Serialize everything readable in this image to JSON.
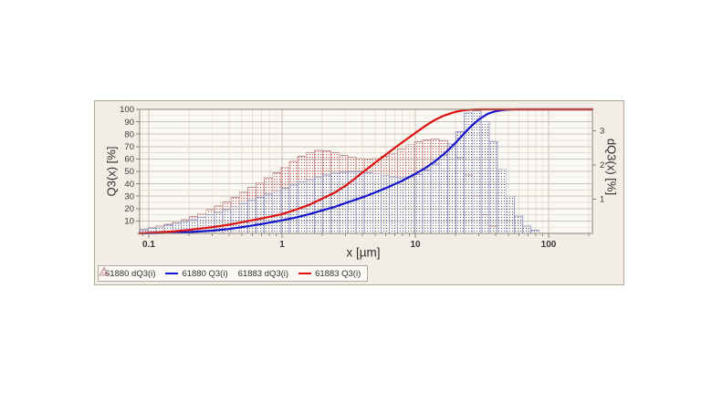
{
  "page": {
    "background": "#ffffff"
  },
  "colors": {
    "red_series": "#dd1111",
    "blue_series": "#1414cc",
    "red_bar_stroke": "#c49494",
    "red_bar_dot": "#cc5050",
    "blue_bar_stroke": "#9a9ec8",
    "blue_bar_dot": "#5e62aa",
    "panel_bg": "#f2eee5",
    "panel_border": "#b3a795",
    "plot_bg": "#fbf9f4",
    "grid_major": "#c8c3b8",
    "grid_minor": "#e4e0d6",
    "axis": "#8a8274",
    "text": "#3a3a3a",
    "legend_bg": "#fbfaf7",
    "legend_border": "#b2aea4"
  },
  "chart_data": {
    "type": "histogram+cumulative particle size distribution (log x)",
    "title": "",
    "x_axis": {
      "label": "x [µm]",
      "scale": "log",
      "range": [
        0.085,
        213
      ],
      "ticks": [
        0.1,
        1,
        10,
        100
      ]
    },
    "y_left": {
      "label": "Q3(x) [%]",
      "range": [
        0,
        100
      ],
      "ticks": [
        10,
        20,
        30,
        40,
        50,
        60,
        70,
        80,
        90,
        100
      ],
      "grid_major_step": 10,
      "grid_minor_step": 5
    },
    "y_right": {
      "label": "dQ3(x) [%]",
      "range": [
        0,
        3.63
      ],
      "ticks": [
        1,
        2,
        3
      ]
    },
    "legend_position": "bottom-left",
    "series": [
      {
        "name": "61883 dQ3(i)",
        "sample": "61883",
        "type": "histogram",
        "value_units": "left-axis % equivalent (right axis = value*3.63/100)",
        "x_start": 0.085,
        "ratio": 1.1548,
        "stroke_key": "red_bar_stroke",
        "dot_key": "red_bar_dot",
        "values": [
          3.5,
          4.5,
          6,
          7.5,
          9,
          11,
          13.5,
          16,
          19,
          22,
          25.5,
          29,
          33,
          37,
          41,
          45,
          49,
          53.5,
          58,
          62,
          65,
          67,
          66.5,
          65,
          63,
          61.5,
          60.5,
          60,
          60.5,
          62,
          64.5,
          68,
          71.5,
          74,
          75.5,
          76,
          74.5,
          70,
          61,
          47,
          30,
          15,
          6
        ]
      },
      {
        "name": "61880 dQ3(i)",
        "sample": "61880",
        "type": "histogram",
        "value_units": "left-axis % equivalent (right axis = value*3.63/100)",
        "x_start": 0.085,
        "ratio": 1.1548,
        "stroke_key": "blue_bar_stroke",
        "dot_key": "blue_bar_dot",
        "values": [
          3,
          4,
          5,
          6.5,
          8,
          9.5,
          11,
          13,
          15,
          17,
          19,
          21.5,
          24,
          26.5,
          29,
          31.5,
          34,
          36.5,
          39,
          41.5,
          43.5,
          45.5,
          47,
          48.5,
          49.2,
          49.5,
          49.5,
          49,
          48,
          46.5,
          45.5,
          45,
          45.5,
          47.5,
          51,
          56,
          63,
          72,
          82,
          97,
          99,
          90,
          74,
          52,
          30,
          14,
          6,
          2.5
        ]
      },
      {
        "name": "61880 Q3(i)",
        "sample": "61880",
        "type": "line",
        "color_key": "blue_series",
        "points": [
          [
            0.085,
            0
          ],
          [
            0.12,
            0.2
          ],
          [
            0.2,
            1
          ],
          [
            0.3,
            2.2
          ],
          [
            0.4,
            3.5
          ],
          [
            0.5,
            5
          ],
          [
            0.7,
            7.5
          ],
          [
            1,
            10.5
          ],
          [
            1.3,
            13
          ],
          [
            1.6,
            15.5
          ],
          [
            2,
            18.5
          ],
          [
            2.5,
            21.5
          ],
          [
            3,
            24.5
          ],
          [
            4,
            29
          ],
          [
            5,
            33
          ],
          [
            6,
            36.5
          ],
          [
            8,
            42.5
          ],
          [
            10,
            48
          ],
          [
            12,
            53
          ],
          [
            14,
            58
          ],
          [
            16,
            63
          ],
          [
            18,
            68
          ],
          [
            20,
            73
          ],
          [
            23,
            80
          ],
          [
            26,
            86
          ],
          [
            30,
            92
          ],
          [
            35,
            96.5
          ],
          [
            40,
            98.5
          ],
          [
            45,
            99.4
          ],
          [
            50,
            99.8
          ],
          [
            57,
            100
          ],
          [
            213,
            100
          ]
        ]
      },
      {
        "name": "61883 Q3(i)",
        "sample": "61883",
        "type": "line",
        "color_key": "red_series",
        "points": [
          [
            0.085,
            0.1
          ],
          [
            0.12,
            0.8
          ],
          [
            0.15,
            1.5
          ],
          [
            0.2,
            2.8
          ],
          [
            0.3,
            5
          ],
          [
            0.4,
            7
          ],
          [
            0.5,
            9
          ],
          [
            0.7,
            12
          ],
          [
            1,
            15.5
          ],
          [
            1.3,
            19.5
          ],
          [
            1.6,
            23
          ],
          [
            2,
            28
          ],
          [
            2.5,
            33
          ],
          [
            3,
            38.5
          ],
          [
            3.5,
            44
          ],
          [
            4,
            49
          ],
          [
            5,
            57
          ],
          [
            6,
            63.5
          ],
          [
            7,
            69
          ],
          [
            8,
            73.5
          ],
          [
            10,
            81
          ],
          [
            12,
            87
          ],
          [
            14,
            91.5
          ],
          [
            16,
            94.5
          ],
          [
            18,
            96.5
          ],
          [
            20,
            98
          ],
          [
            23,
            99.2
          ],
          [
            26,
            99.8
          ],
          [
            30,
            100
          ],
          [
            213,
            100
          ]
        ]
      }
    ],
    "legend": [
      {
        "label": "61880 dQ3(i)",
        "swatch": "histogram",
        "stroke_key": "blue_bar_stroke",
        "dot_key": "blue_bar_dot"
      },
      {
        "label": "61880 Q3(i)",
        "swatch": "line",
        "color_key": "blue_series"
      },
      {
        "label": "61883 dQ3(i)",
        "swatch": "histogram",
        "stroke_key": "red_bar_stroke",
        "dot_key": "red_bar_dot"
      },
      {
        "label": "61883 Q3(i)",
        "swatch": "line",
        "color_key": "red_series"
      }
    ]
  }
}
